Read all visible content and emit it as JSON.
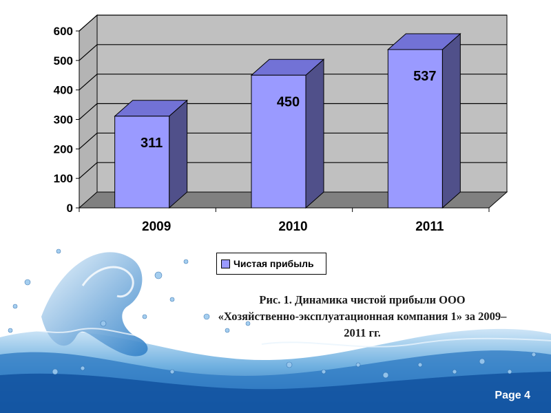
{
  "chart_data": {
    "type": "bar",
    "categories": [
      "2009",
      "2010",
      "2011"
    ],
    "series": [
      {
        "name": "Чистая прибыль",
        "values": [
          311,
          450,
          537
        ],
        "color": "#9a9aff"
      }
    ],
    "ylim": [
      0,
      600
    ],
    "yticks": [
      "0",
      "100",
      "200",
      "300",
      "400",
      "500",
      "600"
    ],
    "data_labels": [
      "311",
      "450",
      "537"
    ],
    "grid": true,
    "legend_position": "bottom",
    "three_d": true,
    "colors": {
      "bar_front": "#9a9aff",
      "bar_top": "#7272d6",
      "bar_side": "#50508a",
      "wall": "#c0c0c0",
      "floor": "#808080"
    }
  },
  "legend": {
    "label": "Чистая прибыль"
  },
  "caption": {
    "line1": "Рис. 1. Динамика чистой прибыли ООО",
    "line2": "«Хозяйственно-эксплуатационная компания 1» за 2009–",
    "line3": "2011 гг."
  },
  "footer": {
    "page_label": "Page 4"
  },
  "background": {
    "decoration": "water-splash",
    "color": "#1f6fb8"
  }
}
